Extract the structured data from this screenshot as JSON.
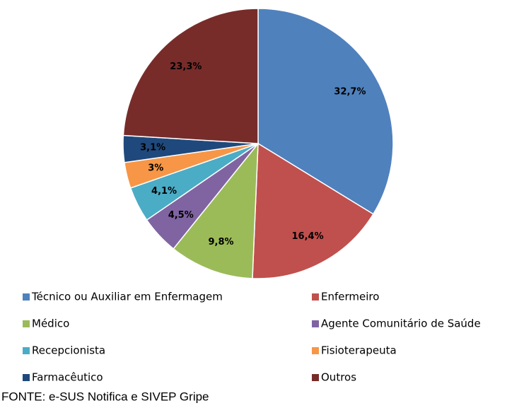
{
  "chart_data": {
    "type": "pie",
    "categories": [
      "Técnico ou Auxiliar em Enfermagem",
      "Enfermeiro",
      "Médico",
      "Agente Comunitário de Saúde",
      "Recepcionista",
      "Fisioterapeuta",
      "Farmacêutico",
      "Outros"
    ],
    "values": [
      32.7,
      16.4,
      9.8,
      4.5,
      4.1,
      3,
      3.1,
      23.3
    ],
    "value_labels": [
      "32,7%",
      "16,4%",
      "9,8%",
      "4,5%",
      "4,1%",
      "3%",
      "3,1%",
      "23,3%"
    ],
    "colors": [
      "#4f81bd",
      "#c0504d",
      "#9bbb59",
      "#8064a2",
      "#4bacc6",
      "#f79646",
      "#1f497d",
      "#772c2a"
    ],
    "source": "FONTE: e-SUS Notifica e SIVEP Gripe"
  }
}
